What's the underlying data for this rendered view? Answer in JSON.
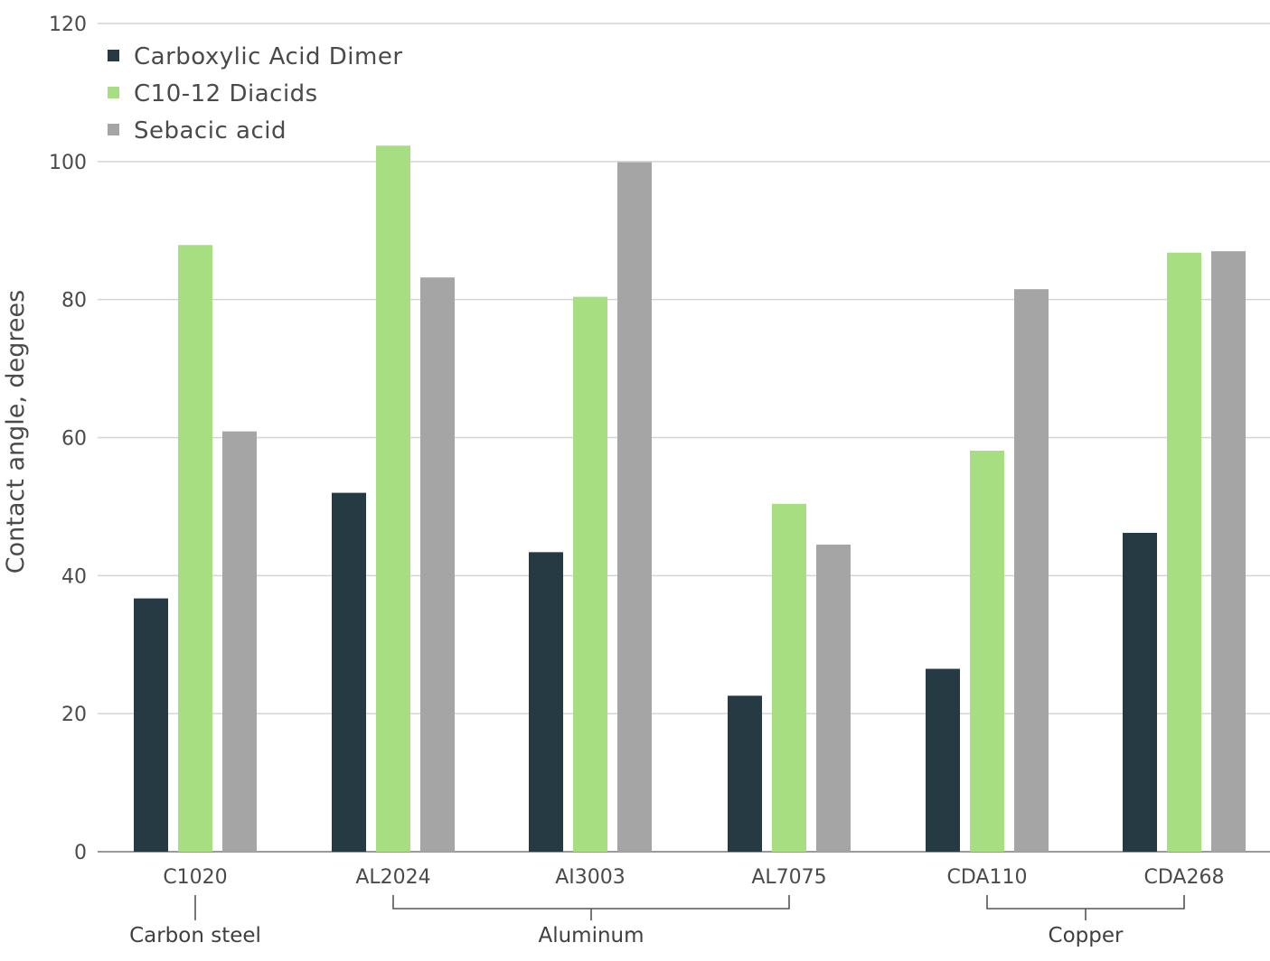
{
  "chart_data": {
    "type": "bar",
    "title": "",
    "xlabel": "",
    "ylabel": "Contact angle, degrees",
    "ylim": [
      0,
      120
    ],
    "yticks": [
      0,
      20,
      40,
      60,
      80,
      100,
      120
    ],
    "grid": "horizontal",
    "legend_position": "top-left",
    "categories": [
      "C1020",
      "AL2024",
      "AI3003",
      "AL7075",
      "CDA110",
      "CDA268"
    ],
    "series": [
      {
        "name": "Carboxylic Acid Dimer",
        "color": "#263a43",
        "values": [
          36.7,
          52.0,
          43.4,
          22.6,
          26.5,
          46.2
        ]
      },
      {
        "name": "C10-12 Diacids",
        "color": "#a8de82",
        "values": [
          87.9,
          102.3,
          80.4,
          50.4,
          58.1,
          86.8
        ]
      },
      {
        "name": "Sebacic acid",
        "color": "#a5a5a5",
        "values": [
          60.9,
          83.2,
          99.9,
          44.5,
          81.5,
          87.0
        ]
      }
    ],
    "groups": [
      {
        "label": "Carbon steel",
        "categories": [
          "C1020"
        ]
      },
      {
        "label": "Aluminum",
        "categories": [
          "AL2024",
          "AI3003",
          "AL7075"
        ]
      },
      {
        "label": "Copper",
        "categories": [
          "CDA110",
          "CDA268"
        ]
      }
    ],
    "colors": {
      "grid": "#d4d4d4",
      "axis": "#9a9a9a",
      "text": "#4a4a4a"
    }
  }
}
